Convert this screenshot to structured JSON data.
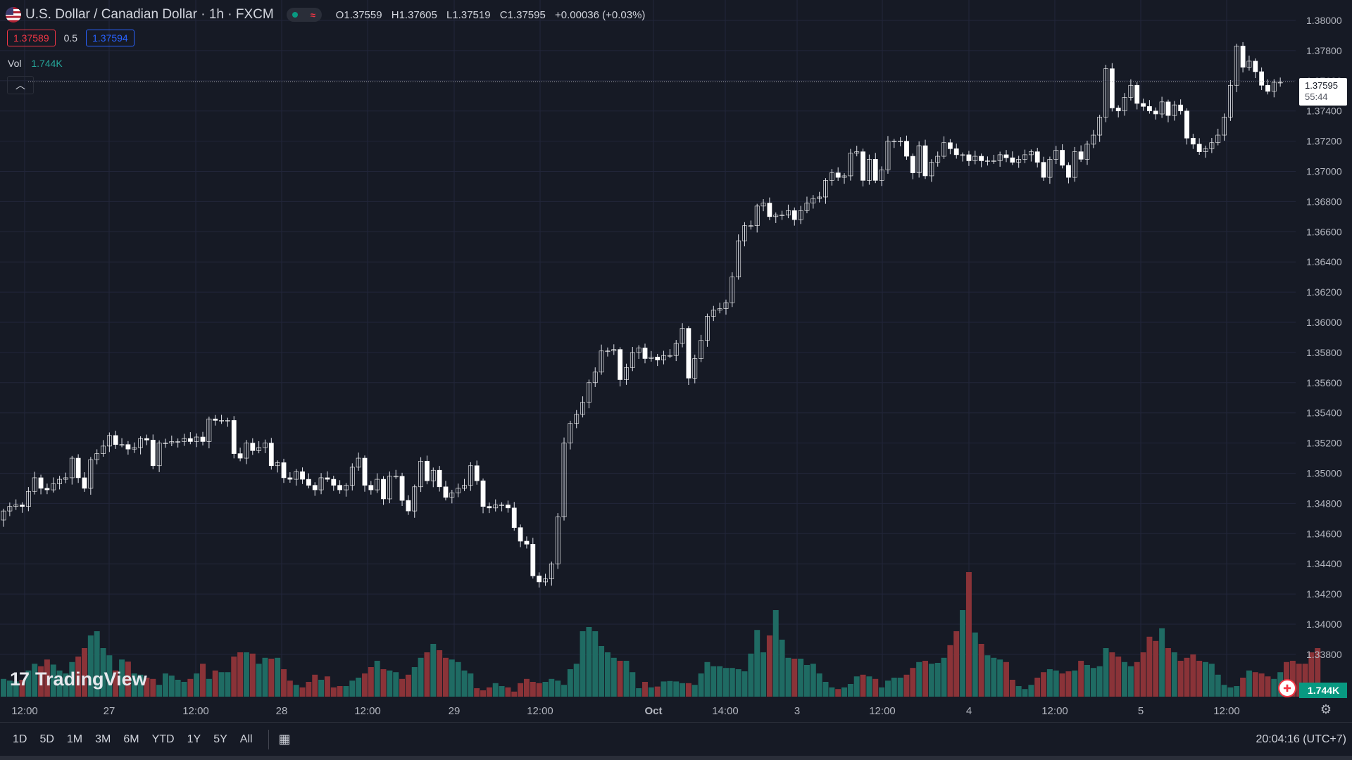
{
  "header": {
    "title": "U.S. Dollar / Canadian Dollar · 1h · FXCM",
    "status_icon": "market-open-dot",
    "o_label": "O",
    "o": "1.37559",
    "h_label": "H",
    "h": "1.37605",
    "l_label": "L",
    "l": "1.37519",
    "c_label": "C",
    "c": "1.37595",
    "change": "+0.00036 (+0.03%)"
  },
  "quote": {
    "bid": "1.37589",
    "spread": "0.5",
    "ask": "1.37594"
  },
  "volume_legend": {
    "label": "Vol",
    "value": "1.744K"
  },
  "price_tag": {
    "price": "1.37595",
    "countdown": "55:44"
  },
  "volume_tag": "1.744K",
  "logo": {
    "mark": "17",
    "name": "TradingView"
  },
  "bottom_bar": {
    "ranges": [
      "1D",
      "5D",
      "1M",
      "3M",
      "6M",
      "YTD",
      "1Y",
      "5Y",
      "All"
    ],
    "clock": "20:04:16 (UTC+7)"
  },
  "colors": {
    "background": "#161a25",
    "up": "#ffffff",
    "down": "#ffffff",
    "vol_up": "#1f6b63",
    "vol_down": "#8a3338",
    "grid": "#22263a"
  },
  "chart_data": {
    "type": "candlestick",
    "symbol": "USDCAD",
    "interval": "1h",
    "y_axis": {
      "side": "right",
      "ticks": [
        "1.38000",
        "1.37800",
        "1.37600",
        "1.37400",
        "1.37200",
        "1.37000",
        "1.36800",
        "1.36600",
        "1.36400",
        "1.36200",
        "1.36000",
        "1.35800",
        "1.35600",
        "1.35400",
        "1.35200",
        "1.35000",
        "1.34800",
        "1.34600",
        "1.34400",
        "1.34200",
        "1.34000",
        "1.33800"
      ],
      "range": [
        1.3374,
        1.3806
      ]
    },
    "x_axis": {
      "ticks": [
        "12:00",
        "27",
        "12:00",
        "28",
        "12:00",
        "29",
        "12:00",
        "Oct",
        "14:00",
        "3",
        "12:00",
        "4",
        "12:00",
        "5",
        "12:00"
      ],
      "bold": [
        "Oct"
      ]
    },
    "last_price": 1.37595,
    "closes": [
      1.3475,
      1.3478,
      1.3479,
      1.3478,
      1.3488,
      1.3497,
      1.349,
      1.3489,
      1.3493,
      1.3496,
      1.3497,
      1.351,
      1.3497,
      1.349,
      1.3509,
      1.3513,
      1.3518,
      1.3525,
      1.3519,
      1.3519,
      1.3516,
      1.3517,
      1.3523,
      1.3522,
      1.3505,
      1.352,
      1.352,
      1.3521,
      1.3521,
      1.3523,
      1.3521,
      1.3524,
      1.3521,
      1.3536,
      1.3535,
      1.3535,
      1.3535,
      1.3513,
      1.351,
      1.352,
      1.3515,
      1.3517,
      1.352,
      1.3505,
      1.3507,
      1.3497,
      1.3496,
      1.3501,
      1.3496,
      1.3492,
      1.3489,
      1.3497,
      1.3496,
      1.3492,
      1.3489,
      1.3492,
      1.3504,
      1.351,
      1.3492,
      1.3489,
      1.3496,
      1.3483,
      1.3498,
      1.3498,
      1.3482,
      1.3475,
      1.3491,
      1.3508,
      1.3495,
      1.3502,
      1.3491,
      1.3484,
      1.3487,
      1.349,
      1.3492,
      1.3505,
      1.3495,
      1.3478,
      1.3477,
      1.3479,
      1.3479,
      1.3477,
      1.3464,
      1.3455,
      1.3453,
      1.3432,
      1.3428,
      1.343,
      1.344,
      1.3471,
      1.352,
      1.3533,
      1.3539,
      1.3547,
      1.356,
      1.3567,
      1.3581,
      1.3581,
      1.3582,
      1.3562,
      1.357,
      1.358,
      1.3583,
      1.3576,
      1.3577,
      1.3575,
      1.3578,
      1.3578,
      1.3586,
      1.3596,
      1.3563,
      1.3576,
      1.3588,
      1.3604,
      1.3608,
      1.3609,
      1.3613,
      1.363,
      1.3654,
      1.3664,
      1.3664,
      1.3677,
      1.3679,
      1.367,
      1.3671,
      1.3671,
      1.3674,
      1.3668,
      1.3674,
      1.3679,
      1.3682,
      1.3683,
      1.3694,
      1.3699,
      1.3696,
      1.3697,
      1.3712,
      1.3713,
      1.3694,
      1.3708,
      1.3694,
      1.3701,
      1.372,
      1.372,
      1.372,
      1.371,
      1.3699,
      1.3717,
      1.3697,
      1.3706,
      1.371,
      1.3719,
      1.3715,
      1.3711,
      1.3711,
      1.3707,
      1.371,
      1.3707,
      1.3707,
      1.3707,
      1.3711,
      1.3709,
      1.3706,
      1.3708,
      1.3711,
      1.3713,
      1.3706,
      1.3696,
      1.3708,
      1.3714,
      1.3704,
      1.3696,
      1.3713,
      1.3708,
      1.3718,
      1.3724,
      1.3736,
      1.3768,
      1.3742,
      1.374,
      1.3749,
      1.3757,
      1.3745,
      1.3743,
      1.374,
      1.3738,
      1.3746,
      1.3737,
      1.3744,
      1.374,
      1.3722,
      1.3718,
      1.3713,
      1.3715,
      1.3719,
      1.3724,
      1.3736,
      1.3757,
      1.3783,
      1.3769,
      1.3773,
      1.3766,
      1.3757,
      1.3753,
      1.3759,
      1.3759
    ],
    "volumes": [
      0.42,
      0.38,
      0.36,
      0.4,
      0.62,
      0.78,
      0.72,
      0.88,
      0.76,
      0.62,
      0.55,
      0.82,
      0.95,
      1.15,
      1.45,
      1.55,
      1.15,
      0.98,
      0.62,
      0.88,
      0.83,
      0.55,
      0.52,
      0.45,
      0.42,
      0.28,
      0.55,
      0.5,
      0.4,
      0.35,
      0.42,
      0.55,
      0.78,
      0.42,
      0.62,
      0.58,
      0.58,
      0.95,
      1.05,
      1.05,
      1.02,
      0.78,
      0.92,
      0.9,
      0.92,
      0.65,
      0.38,
      0.28,
      0.22,
      0.35,
      0.52,
      0.4,
      0.48,
      0.22,
      0.25,
      0.25,
      0.38,
      0.45,
      0.55,
      0.7,
      0.85,
      0.65,
      0.62,
      0.58,
      0.42,
      0.52,
      0.7,
      0.92,
      1.05,
      1.25,
      1.1,
      0.92,
      0.88,
      0.82,
      0.62,
      0.55,
      0.2,
      0.15,
      0.22,
      0.32,
      0.25,
      0.22,
      0.12,
      0.32,
      0.42,
      0.35,
      0.32,
      0.35,
      0.42,
      0.38,
      0.28,
      0.65,
      0.78,
      1.55,
      1.65,
      1.55,
      1.2,
      1.05,
      0.92,
      0.85,
      0.85,
      0.58,
      0.2,
      0.35,
      0.22,
      0.24,
      0.36,
      0.37,
      0.36,
      0.32,
      0.32,
      0.28,
      0.55,
      0.82,
      0.72,
      0.72,
      0.68,
      0.68,
      0.65,
      0.6,
      1.02,
      1.58,
      1.05,
      1.45,
      2.05,
      1.35,
      0.92,
      0.9,
      0.9,
      0.75,
      0.78,
      0.55,
      0.35,
      0.22,
      0.18,
      0.22,
      0.3,
      0.48,
      0.52,
      0.48,
      0.42,
      0.22,
      0.38,
      0.45,
      0.45,
      0.52,
      0.68,
      0.82,
      0.85,
      0.78,
      0.8,
      0.92,
      1.22,
      1.55,
      2.05,
      2.95,
      1.52,
      1.25,
      0.98,
      0.92,
      0.88,
      0.82,
      0.4,
      0.25,
      0.18,
      0.28,
      0.45,
      0.58,
      0.65,
      0.62,
      0.55,
      0.6,
      0.62,
      0.85,
      0.75,
      0.68,
      0.72,
      1.15,
      1.05,
      0.95,
      0.82,
      0.72,
      0.82,
      1.05,
      1.42,
      1.32,
      1.62,
      1.15,
      1.05,
      0.85,
      0.92,
      1.0,
      0.85,
      0.82,
      0.78,
      0.52,
      0.28,
      0.22,
      0.25,
      0.45,
      0.62,
      0.58,
      0.55,
      0.48,
      0.42,
      0.58,
      0.82,
      0.85,
      0.78,
      0.78,
      1.05,
      1.15
    ]
  }
}
